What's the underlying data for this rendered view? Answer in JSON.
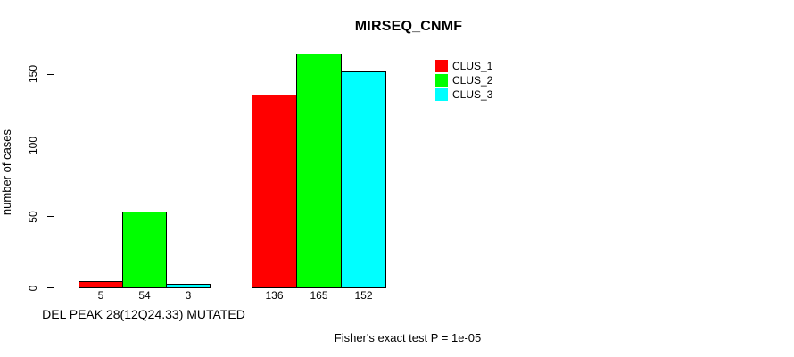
{
  "title": "MIRSEQ_CNMF",
  "y_axis": {
    "label": "number of cases",
    "ticks": [
      "0",
      "50",
      "100",
      "150"
    ]
  },
  "x_axis": {
    "group_label": "DEL PEAK 28(12Q24.33) MUTATED"
  },
  "legend": {
    "items": [
      {
        "label": "CLUS_1",
        "color": "#ff0000"
      },
      {
        "label": "CLUS_2",
        "color": "#00ff00"
      },
      {
        "label": "CLUS_3",
        "color": "#00ffff"
      }
    ]
  },
  "footer": "Fisher's exact test P = 1e-05",
  "colors": {
    "bar_border": "#000000",
    "axis": "#000000",
    "background": "#ffffff"
  },
  "chart_data": {
    "type": "bar",
    "title": "MIRSEQ_CNMF",
    "xlabel": "DEL PEAK 28(12Q24.33) MUTATED",
    "ylabel": "number of cases",
    "ylim": [
      0,
      165
    ],
    "y_ticks": [
      0,
      50,
      100,
      150
    ],
    "grid": false,
    "legend_position": "top-right",
    "categories": [
      "DEL PEAK 28(12Q24.33) MUTATED",
      ""
    ],
    "series": [
      {
        "name": "CLUS_1",
        "color": "#ff0000",
        "values": [
          5,
          136
        ]
      },
      {
        "name": "CLUS_2",
        "color": "#00ff00",
        "values": [
          54,
          165
        ]
      },
      {
        "name": "CLUS_3",
        "color": "#00ffff",
        "values": [
          3,
          152
        ]
      }
    ],
    "bar_value_labels": [
      [
        5,
        54,
        3
      ],
      [
        136,
        165,
        152
      ]
    ],
    "annotation": "Fisher's exact test P = 1e-05"
  }
}
